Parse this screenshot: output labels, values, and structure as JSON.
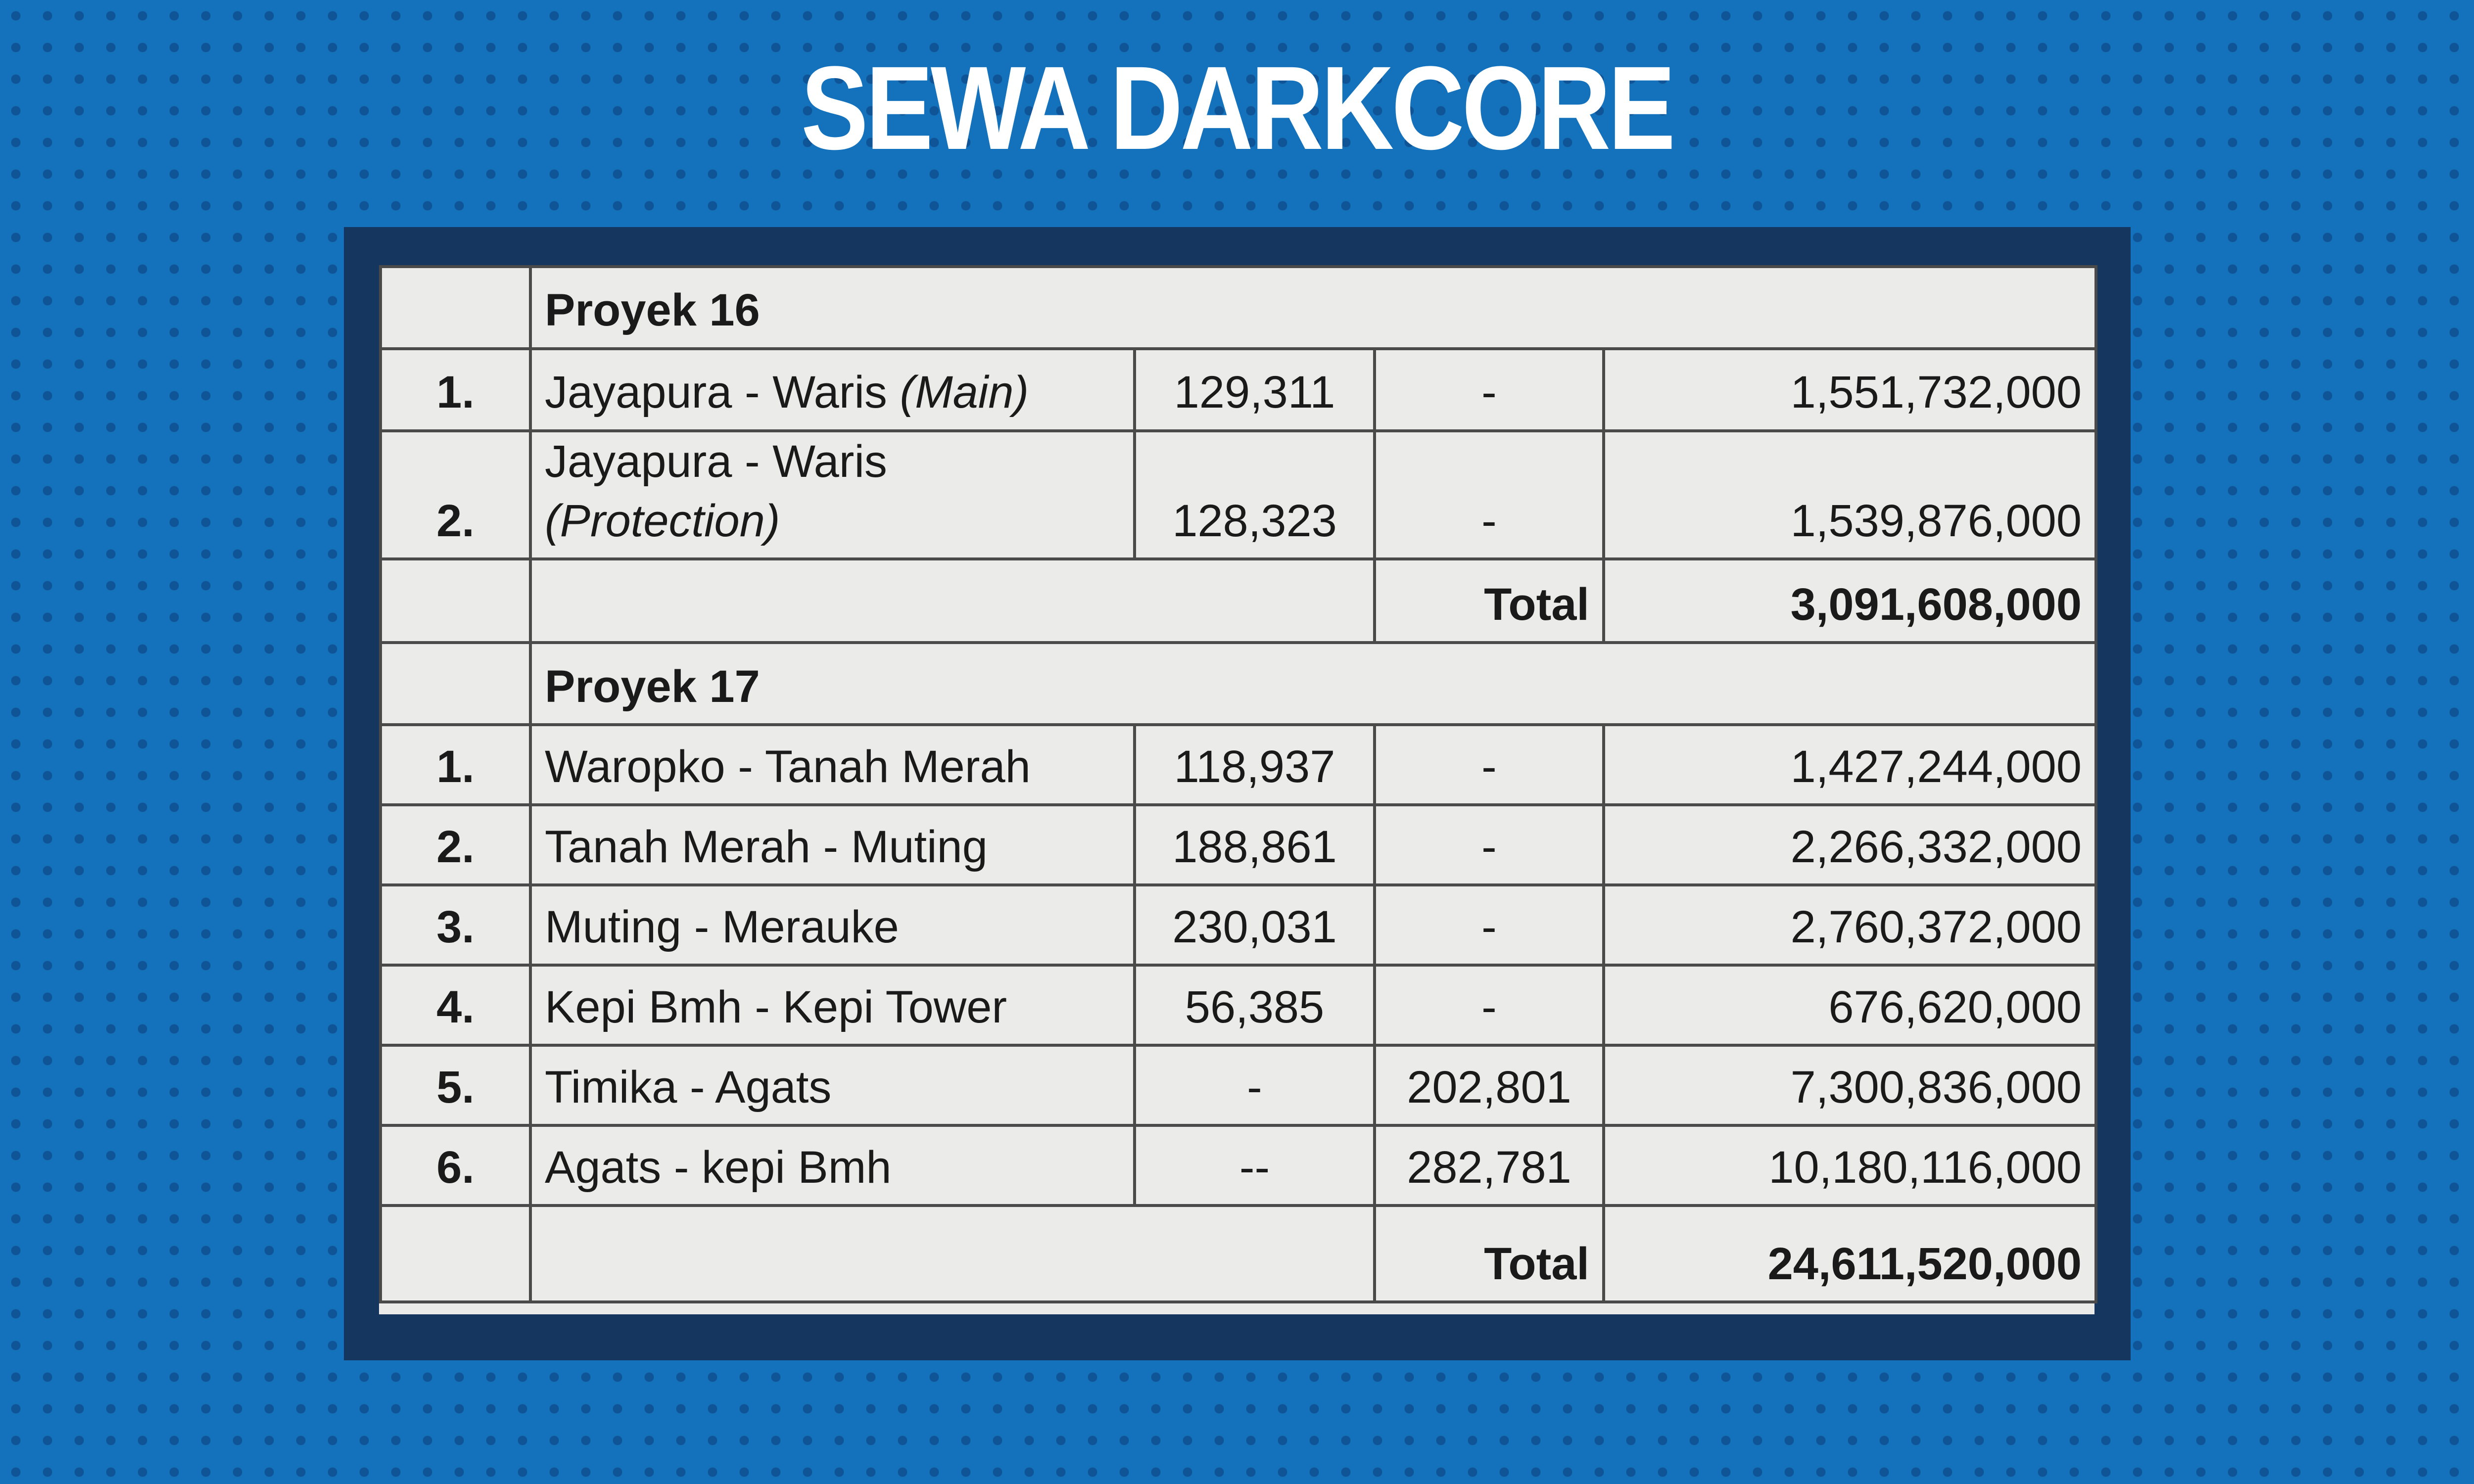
{
  "header": {
    "title": "SEWA DARKCORE"
  },
  "table": {
    "sections": [
      {
        "title": "Proyek 16",
        "rows": [
          {
            "no": "1.",
            "route": "Jayapura - Waris",
            "qualifier": "(Main)",
            "qty_1": "129,311",
            "qty_2": "-",
            "amount": "1,551,732,000"
          },
          {
            "no": "2.",
            "route": "Jayapura - Waris",
            "qualifier": "(Protection)",
            "qty_1": "128,323",
            "qty_2": "-",
            "amount": "1,539,876,000"
          }
        ],
        "total_label": "Total",
        "total": "3,091,608,000"
      },
      {
        "title": "Proyek 17",
        "rows": [
          {
            "no": "1.",
            "route": "Waropko - Tanah Merah",
            "qty_1": "118,937",
            "qty_2": "-",
            "amount": "1,427,244,000"
          },
          {
            "no": "2.",
            "route": "Tanah Merah - Muting",
            "qty_1": "188,861",
            "qty_2": "-",
            "amount": "2,266,332,000"
          },
          {
            "no": "3.",
            "route": "Muting - Merauke",
            "qty_1": "230,031",
            "qty_2": "-",
            "amount": "2,760,372,000"
          },
          {
            "no": "4.",
            "route": "Kepi Bmh - Kepi Tower",
            "qty_1": "56,385",
            "qty_2": "-",
            "amount": "676,620,000"
          },
          {
            "no": "5.",
            "route": "Timika - Agats",
            "qty_1": "-",
            "qty_2": "202,801",
            "amount": "7,300,836,000"
          },
          {
            "no": "6.",
            "route": "Agats - kepi Bmh",
            "qty_1": "--",
            "qty_2": "282,781",
            "amount": "10,180,116,000"
          }
        ],
        "total_label": "Total",
        "total": "24,611,520,000"
      }
    ]
  }
}
